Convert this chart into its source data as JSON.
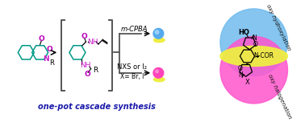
{
  "bg_color": "#ffffff",
  "title_text": "one-pot cascade synthesis",
  "title_color": "#1a1aaa",
  "title_style": "italic",
  "title_weight": "bold",
  "mcpba_label": "m-CPBA",
  "nxs_label": "NXS or I₂",
  "x_label": "X= Br, I",
  "oxy_hydrox": "oxy hydroxylation",
  "oxy_halog": "oxy halogenation",
  "blue_circle_color": "#70BBEE",
  "yellow_circle_color": "#EEEE44",
  "pink_circle_color": "#FF55CC",
  "blue_ball_color": "#55AAEE",
  "pink_ball_color": "#FF44BB",
  "structure_green": "#009988",
  "structure_purple": "#BB00BB",
  "structure_pink": "#CC22CC",
  "structure_nh": "#CC22CC",
  "arrow_color": "#333333",
  "bracket_color": "#555555",
  "text_black": "#000000",
  "figsize": [
    3.78,
    1.52
  ],
  "dpi": 100
}
